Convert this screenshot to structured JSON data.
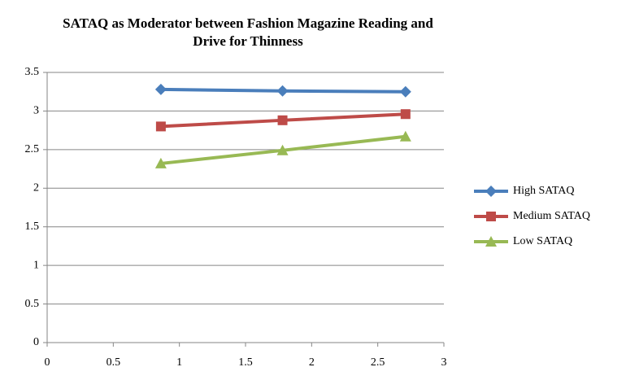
{
  "chart_data": {
    "type": "line",
    "title": "SATAQ as Moderator between Fashion Magazine Reading and Drive for Thinness",
    "x": [
      0.86,
      1.78,
      2.71
    ],
    "series": [
      {
        "name": "High SATAQ",
        "color": "#4a7ebb",
        "marker": "diamond",
        "values": [
          3.28,
          3.26,
          3.25
        ]
      },
      {
        "name": "Medium SATAQ",
        "color": "#be4b48",
        "marker": "square",
        "values": [
          2.8,
          2.88,
          2.96
        ]
      },
      {
        "name": "Low SATAQ",
        "color": "#98b954",
        "marker": "triangle",
        "values": [
          2.32,
          2.49,
          2.67
        ]
      }
    ],
    "xlim": [
      0,
      3
    ],
    "xticks": [
      0,
      0.5,
      1,
      1.5,
      2,
      2.5,
      3
    ],
    "ylim": [
      0,
      3.5
    ],
    "yticks": [
      0,
      0.5,
      1,
      1.5,
      2,
      2.5,
      3,
      3.5
    ],
    "grid": true,
    "legend": "right"
  }
}
